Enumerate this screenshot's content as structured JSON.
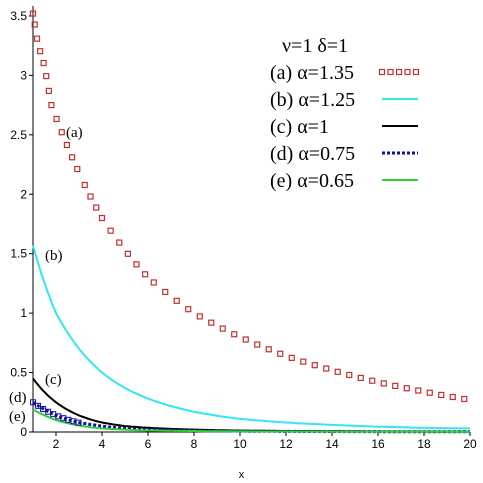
{
  "chart_data": {
    "type": "line",
    "xlabel": "x",
    "ylabel": "",
    "xlim": [
      1,
      20
    ],
    "ylim": [
      0,
      3.55
    ],
    "x_ticks": [
      2,
      4,
      6,
      8,
      10,
      12,
      14,
      16,
      18,
      20
    ],
    "y_ticks": [
      0,
      0.5,
      1,
      1.5,
      2,
      2.5,
      3,
      3.5
    ],
    "legend_title": "ν=1 δ=1",
    "legend_position": "top-right",
    "grid": false,
    "series": [
      {
        "name": "(a) α=1.35",
        "label": "(a)",
        "color": "#c03030",
        "style": "squares",
        "x": [
          1,
          1.2,
          1.5,
          1.8,
          2.4,
          3,
          4,
          5,
          6,
          8,
          10,
          12,
          14,
          16,
          18,
          20
        ],
        "y": [
          3.52,
          3.28,
          3.08,
          2.75,
          2.45,
          2.18,
          1.8,
          1.53,
          1.3,
          1.0,
          0.8,
          0.64,
          0.52,
          0.42,
          0.34,
          0.27
        ]
      },
      {
        "name": "(b) α=1.25",
        "label": "(b)",
        "color": "#33e6f0",
        "style": "solid",
        "x": [
          1,
          2,
          3,
          4,
          5,
          6,
          8,
          10,
          12,
          14,
          16,
          18,
          20
        ],
        "y": [
          1.57,
          1.0,
          0.7,
          0.5,
          0.37,
          0.28,
          0.17,
          0.11,
          0.08,
          0.06,
          0.045,
          0.035,
          0.03
        ]
      },
      {
        "name": "(c) α=1",
        "label": "(c)",
        "color": "#000000",
        "style": "solid",
        "x": [
          1,
          2,
          3,
          4,
          5,
          6,
          8,
          10,
          12,
          14,
          16,
          18,
          20
        ],
        "y": [
          0.45,
          0.25,
          0.14,
          0.08,
          0.05,
          0.035,
          0.02,
          0.012,
          0.008,
          0.006,
          0.004,
          0.003,
          0.002
        ]
      },
      {
        "name": "(d) α=0.75",
        "label": "(d)",
        "color": "#1010a0",
        "style": "dotted",
        "x": [
          1,
          1.5,
          2,
          3,
          4,
          5,
          6,
          8,
          10,
          12,
          14,
          16,
          18,
          20
        ],
        "y": [
          0.25,
          0.19,
          0.14,
          0.08,
          0.05,
          0.03,
          0.02,
          0.012,
          0.008,
          0.005,
          0.004,
          0.003,
          0.002,
          0.002
        ]
      },
      {
        "name": "(e) α=0.65",
        "label": "(e)",
        "color": "#30d030",
        "style": "solid",
        "x": [
          1,
          1.5,
          2,
          3,
          4,
          5,
          6,
          8,
          10,
          12,
          14,
          16,
          18,
          20
        ],
        "y": [
          0.19,
          0.14,
          0.1,
          0.055,
          0.03,
          0.02,
          0.013,
          0.008,
          0.005,
          0.004,
          0.003,
          0.002,
          0.002,
          0.001
        ]
      }
    ]
  }
}
